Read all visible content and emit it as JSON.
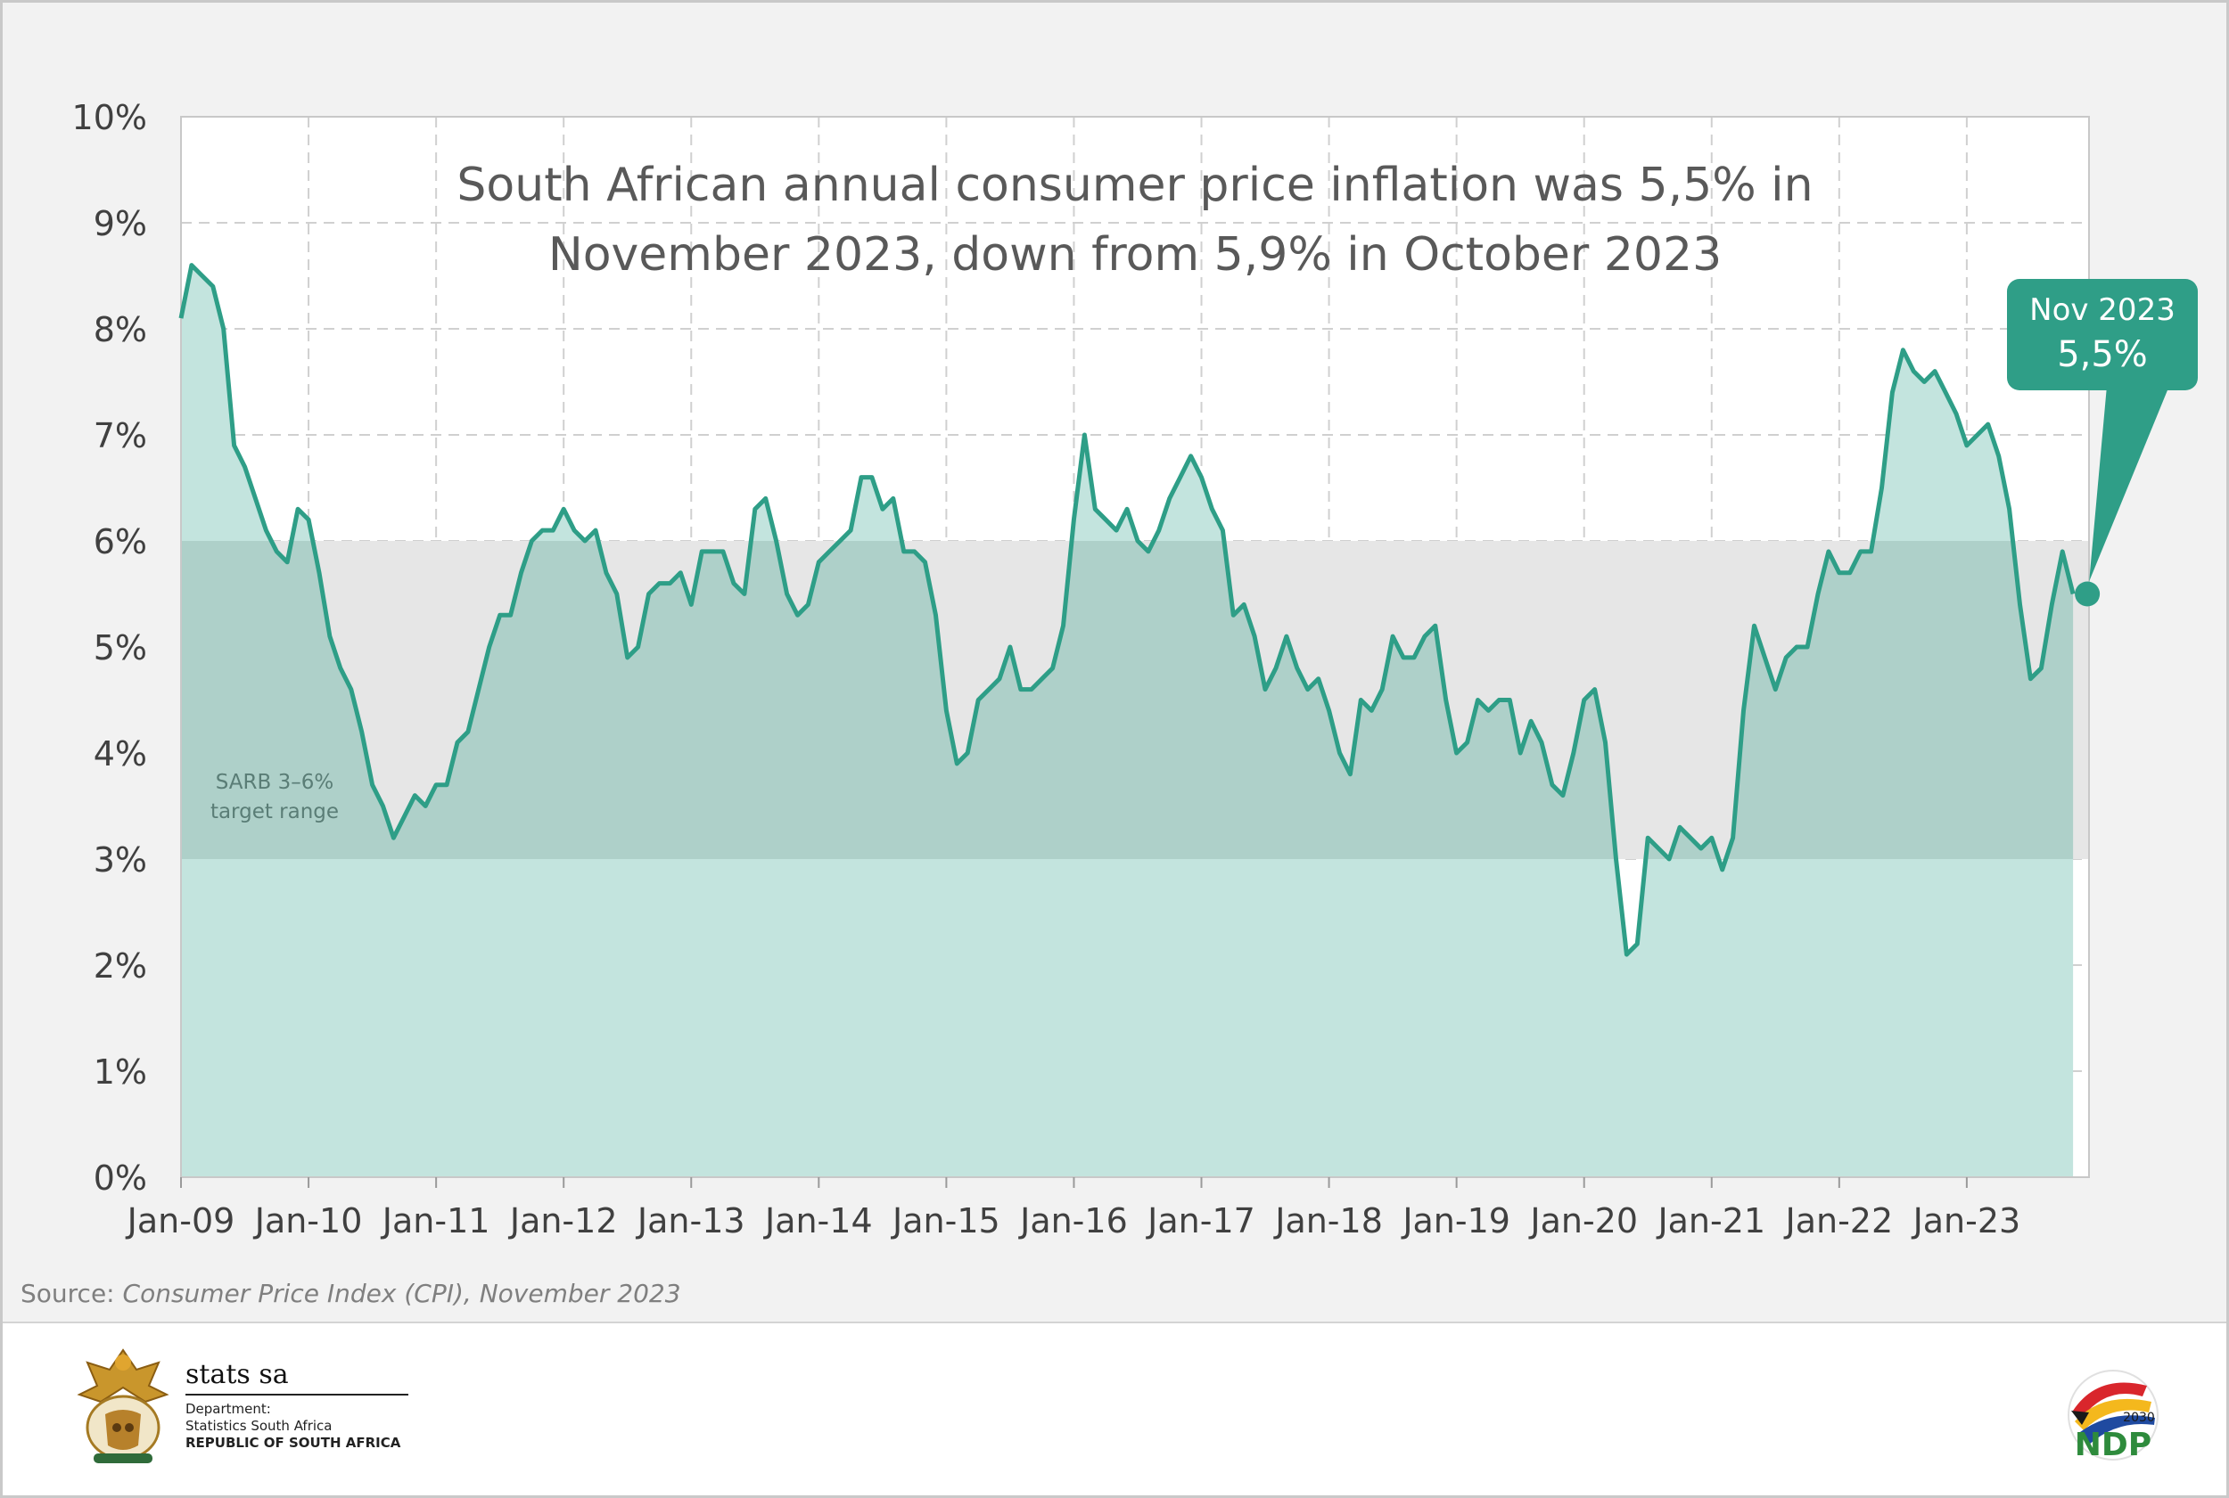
{
  "chart_data": {
    "type": "area",
    "title": "South African annual consumer price inflation was 5,5% in November 2023, down from 5,9% in October 2023",
    "title_lines": [
      "South African annual consumer price inflation was 5,5% in",
      "November 2023, down from 5,9% in October 2023"
    ],
    "xlabel": "",
    "ylabel": "",
    "ylim": [
      0,
      10
    ],
    "yticks": [
      "0%",
      "1%",
      "2%",
      "3%",
      "4%",
      "5%",
      "6%",
      "7%",
      "8%",
      "9%",
      "10%"
    ],
    "xtick_labels": [
      "Jan-09",
      "Jan-10",
      "Jan-11",
      "Jan-12",
      "Jan-13",
      "Jan-14",
      "Jan-15",
      "Jan-16",
      "Jan-17",
      "Jan-18",
      "Jan-19",
      "Jan-20",
      "Jan-21",
      "Jan-22",
      "Jan-23"
    ],
    "x_start": "Jan-09",
    "x_end": "Nov-23",
    "grid": true,
    "series": [
      {
        "unit": "%",
        "frequency": "monthly",
        "values": [
          8.1,
          8.6,
          8.5,
          8.4,
          8.0,
          6.9,
          6.7,
          6.4,
          6.1,
          5.9,
          5.8,
          6.3,
          6.2,
          5.7,
          5.1,
          4.8,
          4.6,
          4.2,
          3.7,
          3.5,
          3.2,
          3.4,
          3.6,
          3.5,
          3.7,
          3.7,
          4.1,
          4.2,
          4.6,
          5.0,
          5.3,
          5.3,
          5.7,
          6.0,
          6.1,
          6.1,
          6.3,
          6.1,
          6.0,
          6.1,
          5.7,
          5.5,
          4.9,
          5.0,
          5.5,
          5.6,
          5.6,
          5.7,
          5.4,
          5.9,
          5.9,
          5.9,
          5.6,
          5.5,
          6.3,
          6.4,
          6.0,
          5.5,
          5.3,
          5.4,
          5.8,
          5.9,
          6.0,
          6.1,
          6.6,
          6.6,
          6.3,
          6.4,
          5.9,
          5.9,
          5.8,
          5.3,
          4.4,
          3.9,
          4.0,
          4.5,
          4.6,
          4.7,
          5.0,
          4.6,
          4.6,
          4.7,
          4.8,
          5.2,
          6.2,
          7.0,
          6.3,
          6.2,
          6.1,
          6.3,
          6.0,
          5.9,
          6.1,
          6.4,
          6.6,
          6.8,
          6.6,
          6.3,
          6.1,
          5.3,
          5.4,
          5.1,
          4.6,
          4.8,
          5.1,
          4.8,
          4.6,
          4.7,
          4.4,
          4.0,
          3.8,
          4.5,
          4.4,
          4.6,
          5.1,
          4.9,
          4.9,
          5.1,
          5.2,
          4.5,
          4.0,
          4.1,
          4.5,
          4.4,
          4.5,
          4.5,
          4.0,
          4.3,
          4.1,
          3.7,
          3.6,
          4.0,
          4.5,
          4.6,
          4.1,
          3.0,
          2.1,
          2.2,
          3.2,
          3.1,
          3.0,
          3.3,
          3.2,
          3.1,
          3.2,
          2.9,
          3.2,
          4.4,
          5.2,
          4.9,
          4.6,
          4.9,
          5.0,
          5.0,
          5.5,
          5.9,
          5.7,
          5.7,
          5.9,
          5.9,
          6.5,
          7.4,
          7.8,
          7.6,
          7.5,
          7.6,
          7.4,
          7.2,
          6.9,
          7.0,
          7.1,
          6.8,
          6.3,
          5.4,
          4.7,
          4.8,
          5.4,
          5.9,
          5.5
        ]
      }
    ],
    "target_band": {
      "label_lines": [
        "SARB 3–6%",
        "target range"
      ],
      "low": 3,
      "high": 6
    },
    "callout": {
      "line1": "Nov 2023",
      "line2": "5,5%",
      "value": 5.5
    },
    "colors": {
      "line": "#2e9e87",
      "area": "#c3e4de",
      "band": "#e6e6e6",
      "overlap": "#aed0c9",
      "callout": "#2f9e87",
      "panel": "#f2f2f2",
      "plot_bg": "#ffffff"
    }
  },
  "source": {
    "prefix": "Source: ",
    "reference": "Consumer Price Index (CPI), November 2023"
  },
  "footer": {
    "department_name": "stats sa",
    "department_label": "Department:",
    "department_full": "Statistics South Africa",
    "country": "REPUBLIC OF SOUTH AFRICA",
    "ndp_year": "2030",
    "ndp_text": "NDP"
  }
}
